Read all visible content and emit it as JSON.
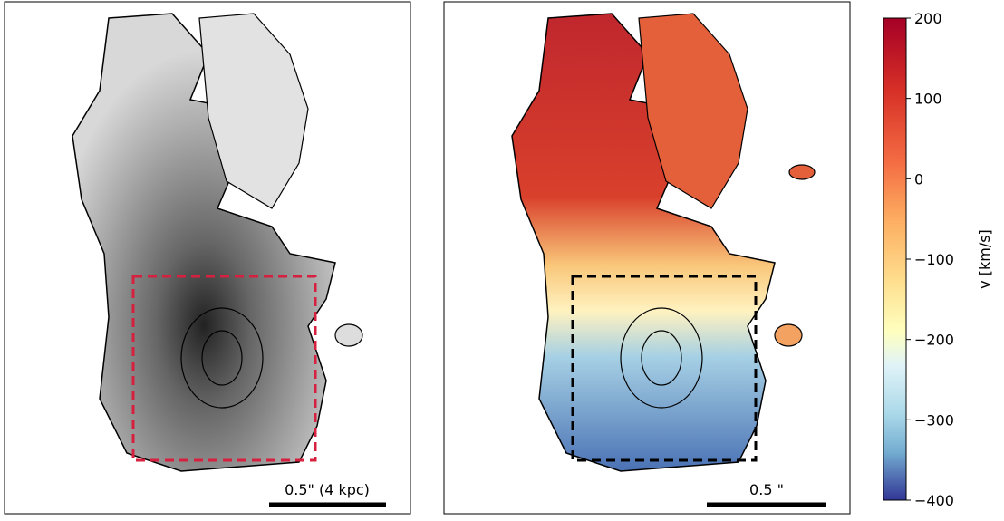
{
  "panels": [
    {
      "scale_bar": "0.5\" (4 kpc)"
    },
    {
      "scale_bar": "0.5 \""
    }
  ],
  "colorbar": {
    "label": "v [km/s]",
    "lim": [
      -400,
      200
    ],
    "ticks": [
      200,
      100,
      0,
      {
        "value": -100,
        "label": "−100"
      },
      {
        "value": -200,
        "label": "−200"
      },
      {
        "value": -300,
        "label": "−300"
      },
      {
        "value": -400,
        "label": "−400"
      }
    ]
  }
}
